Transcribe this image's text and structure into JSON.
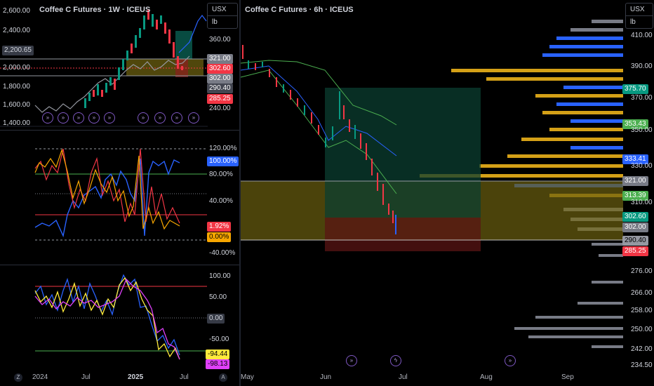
{
  "left_chart": {
    "title": "Coffee C Futures · 1W · ICEUS",
    "unit_currency": "USX",
    "unit_weight": "lb",
    "left_axis": [
      "2,600.00",
      "2,400.00",
      "2,000.00",
      "1,800.00",
      "1,600.00",
      "1,400.00"
    ],
    "left_price_tag": "2,200.65",
    "right_axis": [
      "360.00",
      "240.00"
    ],
    "price_tags": [
      {
        "label": "321.00",
        "bg": "#787b86"
      },
      {
        "label": "302.60",
        "bg": "#f23645"
      },
      {
        "label": "302.00",
        "bg": "#787b86"
      },
      {
        "label": "290.40",
        "bg": "#434651"
      },
      {
        "label": "285.25",
        "bg": "#f23645"
      }
    ]
  },
  "osc1": {
    "axis": [
      "120.00%",
      "80.00%",
      "40.00%",
      "-40.00%"
    ],
    "tags": [
      {
        "label": "100.00%",
        "bg": "#2962ff",
        "fg": "#ffffff"
      },
      {
        "label": "1.92%",
        "bg": "#f23645",
        "fg": "#ffffff"
      },
      {
        "label": "0.00%",
        "bg": "#f7a600",
        "fg": "#000000"
      }
    ]
  },
  "osc2": {
    "axis": [
      "100.00",
      "50.00",
      "-50.00"
    ],
    "tags": [
      {
        "label": "0.00",
        "bg": "#363a45",
        "fg": "#d1d4dc"
      },
      {
        "label": "-94.44",
        "bg": "#ffeb3b",
        "fg": "#000000"
      },
      {
        "label": "-98.13",
        "bg": "#e040fb",
        "fg": "#000000"
      }
    ]
  },
  "right_chart": {
    "title": "Coffee C Futures · 6h · ICEUS",
    "unit_currency": "USX",
    "unit_weight": "lb",
    "axis": [
      "410.00",
      "390.00",
      "370.00",
      "350.00",
      "330.00",
      "310.00",
      "276.00",
      "266.00",
      "258.00",
      "250.00",
      "242.00",
      "234.50"
    ],
    "price_tags": [
      {
        "label": "375.70",
        "bg": "#089981",
        "fg": "#ffffff"
      },
      {
        "label": "353.43",
        "bg": "#4caf50",
        "fg": "#ffffff"
      },
      {
        "label": "333.41",
        "bg": "#2962ff",
        "fg": "#ffffff"
      },
      {
        "label": "321.00",
        "bg": "#787b86",
        "fg": "#ffffff"
      },
      {
        "label": "313.39",
        "bg": "#4caf50",
        "fg": "#ffffff"
      },
      {
        "label": "302.60",
        "bg": "#089981",
        "fg": "#ffffff"
      },
      {
        "label": "302.00",
        "bg": "#787b86",
        "fg": "#ffffff"
      },
      {
        "label": "290.40",
        "bg": "#9598a1",
        "fg": "#000000"
      },
      {
        "label": "285.25",
        "bg": "#f23645",
        "fg": "#ffffff"
      }
    ]
  },
  "time_axis": {
    "left": [
      "2024",
      "Jul",
      "2025",
      "Jul"
    ],
    "right": [
      "May",
      "Jun",
      "Jul",
      "Aug",
      "Sep"
    ],
    "z_button": "Z",
    "a_button": "A"
  },
  "colors": {
    "background": "#000000",
    "candle_up": "#089981",
    "candle_down": "#f23645",
    "vp_gold": "#d4a017",
    "vp_blue": "#2962ff",
    "vp_gray": "#9598a1"
  }
}
